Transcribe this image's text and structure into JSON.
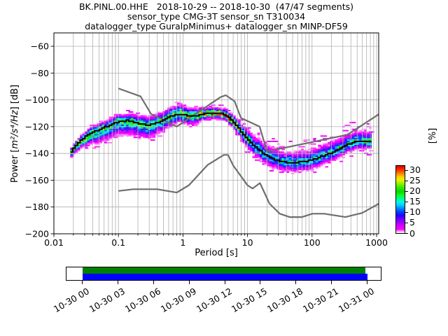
{
  "title": {
    "line1": "BK.PINL.00.HHE   2018-10-29 -- 2018-10-30  (47/47 segments)",
    "line2": "sensor_type CMG-3T sensor_sn T310034",
    "line3": "datalogger_type GuralpMinimus+ datalogger_sn MINP-DF59"
  },
  "axes": {
    "ylabel_prefix": "Power [",
    "ylabel_math": "m²/s⁴/Hz",
    "ylabel_suffix": "] [dB]",
    "xlabel": "Period [s]",
    "x_tick_labels": [
      "0.01",
      "0.1",
      "1",
      "10",
      "100",
      "1000"
    ],
    "x_tick_values": [
      0.01,
      0.1,
      1,
      10,
      100,
      1000
    ],
    "y_tick_labels": [
      "−60",
      "−80",
      "−100",
      "−120",
      "−140",
      "−160",
      "−180",
      "−200"
    ],
    "y_tick_values": [
      -60,
      -80,
      -100,
      -120,
      -140,
      -160,
      -180,
      -200
    ],
    "grid_color": "#b0b0b0"
  },
  "colorbar": {
    "label": "[%]",
    "tick_labels": [
      "0",
      "5",
      "10",
      "15",
      "20",
      "25",
      "30"
    ],
    "tick_values": [
      0,
      5,
      10,
      15,
      20,
      25,
      30
    ],
    "range": [
      0,
      32.3
    ],
    "stops": [
      [
        0,
        "#ffffff"
      ],
      [
        0.7,
        "#ffb3ff"
      ],
      [
        1.8,
        "#ff00ff"
      ],
      [
        4,
        "#c800ff"
      ],
      [
        6.5,
        "#7100ff"
      ],
      [
        8.5,
        "#2a00ff"
      ],
      [
        10,
        "#003cff"
      ],
      [
        12,
        "#008cff"
      ],
      [
        13.5,
        "#00d2ff"
      ],
      [
        15,
        "#00fae6"
      ],
      [
        16.5,
        "#00ff96"
      ],
      [
        18,
        "#14fa28"
      ],
      [
        20,
        "#00dc00"
      ],
      [
        22,
        "#3ce800"
      ],
      [
        24,
        "#96f500"
      ],
      [
        25.5,
        "#e6f500"
      ],
      [
        27,
        "#ffd200"
      ],
      [
        28.5,
        "#ff8c00"
      ],
      [
        30,
        "#ff3c00"
      ],
      [
        32.3,
        "#d70000"
      ]
    ]
  },
  "chart_data": {
    "type": "heatmap",
    "description": "Probabilistic power spectral density (PPSD) histogram with mode line and Peterson NHNM/NLNM noise models",
    "x_axis": {
      "label": "Period [s]",
      "scale": "log",
      "range": [
        0.01,
        1078
      ],
      "ticks": [
        0.01,
        0.1,
        1,
        10,
        100,
        1000
      ]
    },
    "y_axis": {
      "label": "Power [m2/s4/Hz] [dB]",
      "range": [
        -200,
        -50
      ],
      "ticks": [
        -200,
        -180,
        -160,
        -140,
        -120,
        -100,
        -80,
        -60
      ]
    },
    "color_axis": {
      "label": "[%]",
      "range": [
        0,
        30
      ],
      "ticks": [
        0,
        5,
        10,
        15,
        20,
        25,
        30
      ]
    },
    "mode_line": [
      [
        0.018,
        -140
      ],
      [
        0.02,
        -136.5
      ],
      [
        0.023,
        -133
      ],
      [
        0.026,
        -130.5
      ],
      [
        0.03,
        -128
      ],
      [
        0.035,
        -126
      ],
      [
        0.042,
        -124
      ],
      [
        0.05,
        -122.3
      ],
      [
        0.06,
        -120.8
      ],
      [
        0.07,
        -119.5
      ],
      [
        0.08,
        -118.3
      ],
      [
        0.09,
        -117.2
      ],
      [
        0.105,
        -116.2
      ],
      [
        0.12,
        -115.6
      ],
      [
        0.135,
        -115.4
      ],
      [
        0.155,
        -115.8
      ],
      [
        0.18,
        -116.6
      ],
      [
        0.21,
        -117.6
      ],
      [
        0.25,
        -118.4
      ],
      [
        0.29,
        -118.7
      ],
      [
        0.34,
        -118.3
      ],
      [
        0.4,
        -117.2
      ],
      [
        0.47,
        -115.5
      ],
      [
        0.55,
        -113.8
      ],
      [
        0.65,
        -112.2
      ],
      [
        0.75,
        -111.2
      ],
      [
        0.87,
        -110.7
      ],
      [
        1.0,
        -111.0
      ],
      [
        1.15,
        -111.6
      ],
      [
        1.35,
        -112.2
      ],
      [
        1.55,
        -112.0
      ],
      [
        1.8,
        -111.2
      ],
      [
        2.1,
        -110.5
      ],
      [
        2.5,
        -110.0
      ],
      [
        2.9,
        -109.7
      ],
      [
        3.4,
        -109.7
      ],
      [
        3.9,
        -110.1
      ],
      [
        4.5,
        -111.2
      ],
      [
        5.2,
        -113.2
      ],
      [
        6.0,
        -116.0
      ],
      [
        6.9,
        -119.5
      ],
      [
        7.9,
        -123.2
      ],
      [
        9.1,
        -126.8
      ],
      [
        10.5,
        -130.2
      ],
      [
        12,
        -133
      ],
      [
        14,
        -135.8
      ],
      [
        16,
        -138
      ],
      [
        18.5,
        -140.5
      ],
      [
        21,
        -142.3
      ],
      [
        24,
        -143.8
      ],
      [
        28,
        -145
      ],
      [
        32,
        -145.9
      ],
      [
        37,
        -146.4
      ],
      [
        43,
        -146.7
      ],
      [
        50,
        -146.8
      ],
      [
        58,
        -146.7
      ],
      [
        67,
        -146.4
      ],
      [
        77,
        -145.9
      ],
      [
        89,
        -145.3
      ],
      [
        102,
        -144.5
      ],
      [
        118,
        -143.6
      ],
      [
        136,
        -142.6
      ],
      [
        156,
        -141.6
      ],
      [
        180,
        -140.4
      ],
      [
        207,
        -139.2
      ],
      [
        238,
        -137.9
      ],
      [
        274,
        -136.5
      ],
      [
        315,
        -135.0
      ],
      [
        362,
        -133.5
      ],
      [
        416,
        -132.2
      ],
      [
        478,
        -131.2
      ],
      [
        550,
        -131.0
      ],
      [
        640,
        -130.9
      ],
      [
        830,
        -130.9
      ]
    ],
    "noise_models": {
      "color": "#6e6e6e",
      "nhnm": [
        [
          0.1,
          -91.5
        ],
        [
          0.22,
          -97.4
        ],
        [
          0.32,
          -110.5
        ],
        [
          0.8,
          -120.0
        ],
        [
          3.8,
          -98.0
        ],
        [
          4.6,
          -96.5
        ],
        [
          6.3,
          -101.0
        ],
        [
          7.9,
          -113.5
        ],
        [
          15.4,
          -120.0
        ],
        [
          20.0,
          -138.5
        ],
        [
          354.8,
          -126.0
        ],
        [
          1078,
          -110.8
        ]
      ],
      "nlnm": [
        [
          0.1,
          -168.0
        ],
        [
          0.17,
          -166.7
        ],
        [
          0.4,
          -166.7
        ],
        [
          0.8,
          -169.2
        ],
        [
          1.24,
          -163.7
        ],
        [
          2.4,
          -148.6
        ],
        [
          4.3,
          -141.1
        ],
        [
          5.0,
          -141.1
        ],
        [
          6.0,
          -149.0
        ],
        [
          10.0,
          -163.8
        ],
        [
          12.0,
          -166.2
        ],
        [
          15.6,
          -162.1
        ],
        [
          21.9,
          -177.5
        ],
        [
          31.6,
          -185.0
        ],
        [
          45.0,
          -187.5
        ],
        [
          70.0,
          -187.5
        ],
        [
          101.0,
          -185.0
        ],
        [
          154.0,
          -185.0
        ],
        [
          328.0,
          -187.5
        ],
        [
          600.0,
          -184.4
        ],
        [
          1078,
          -177.6
        ]
      ]
    },
    "histogram": {
      "period_start": 0.018,
      "period_end": 830,
      "cols_per_octave": 8,
      "db_bin_width": 1,
      "spread_profile": [
        [
          0.018,
          1.2,
          1.6,
          28
        ],
        [
          0.028,
          1.6,
          2.6,
          24
        ],
        [
          0.05,
          2.2,
          4.0,
          20
        ],
        [
          0.1,
          2.2,
          4.5,
          18
        ],
        [
          0.3,
          2.6,
          4.2,
          18
        ],
        [
          0.55,
          2.8,
          3.2,
          20
        ],
        [
          0.9,
          2.6,
          2.8,
          22
        ],
        [
          1.5,
          2.6,
          2.6,
          22
        ],
        [
          2.3,
          1.7,
          1.7,
          29
        ],
        [
          4.0,
          1.7,
          1.7,
          29
        ],
        [
          6.0,
          2.0,
          2.0,
          26
        ],
        [
          8.5,
          2.6,
          2.6,
          20
        ],
        [
          12,
          3.2,
          3.2,
          15
        ],
        [
          20,
          3.4,
          3.0,
          14
        ],
        [
          60,
          3.4,
          3.0,
          14
        ],
        [
          150,
          3.6,
          3.0,
          14
        ],
        [
          350,
          3.4,
          2.6,
          16
        ],
        [
          830,
          3.0,
          2.4,
          18
        ]
      ]
    }
  },
  "timeline": {
    "tick_labels": [
      "10-30 00",
      "10-30 03",
      "10-30 06",
      "10-30 09",
      "10-30 12",
      "10-30 15",
      "10-30 18",
      "10-30 21",
      "10-31 00"
    ],
    "psd_coverage_color": "#008000",
    "data_coverage_color": "#0000ff"
  }
}
